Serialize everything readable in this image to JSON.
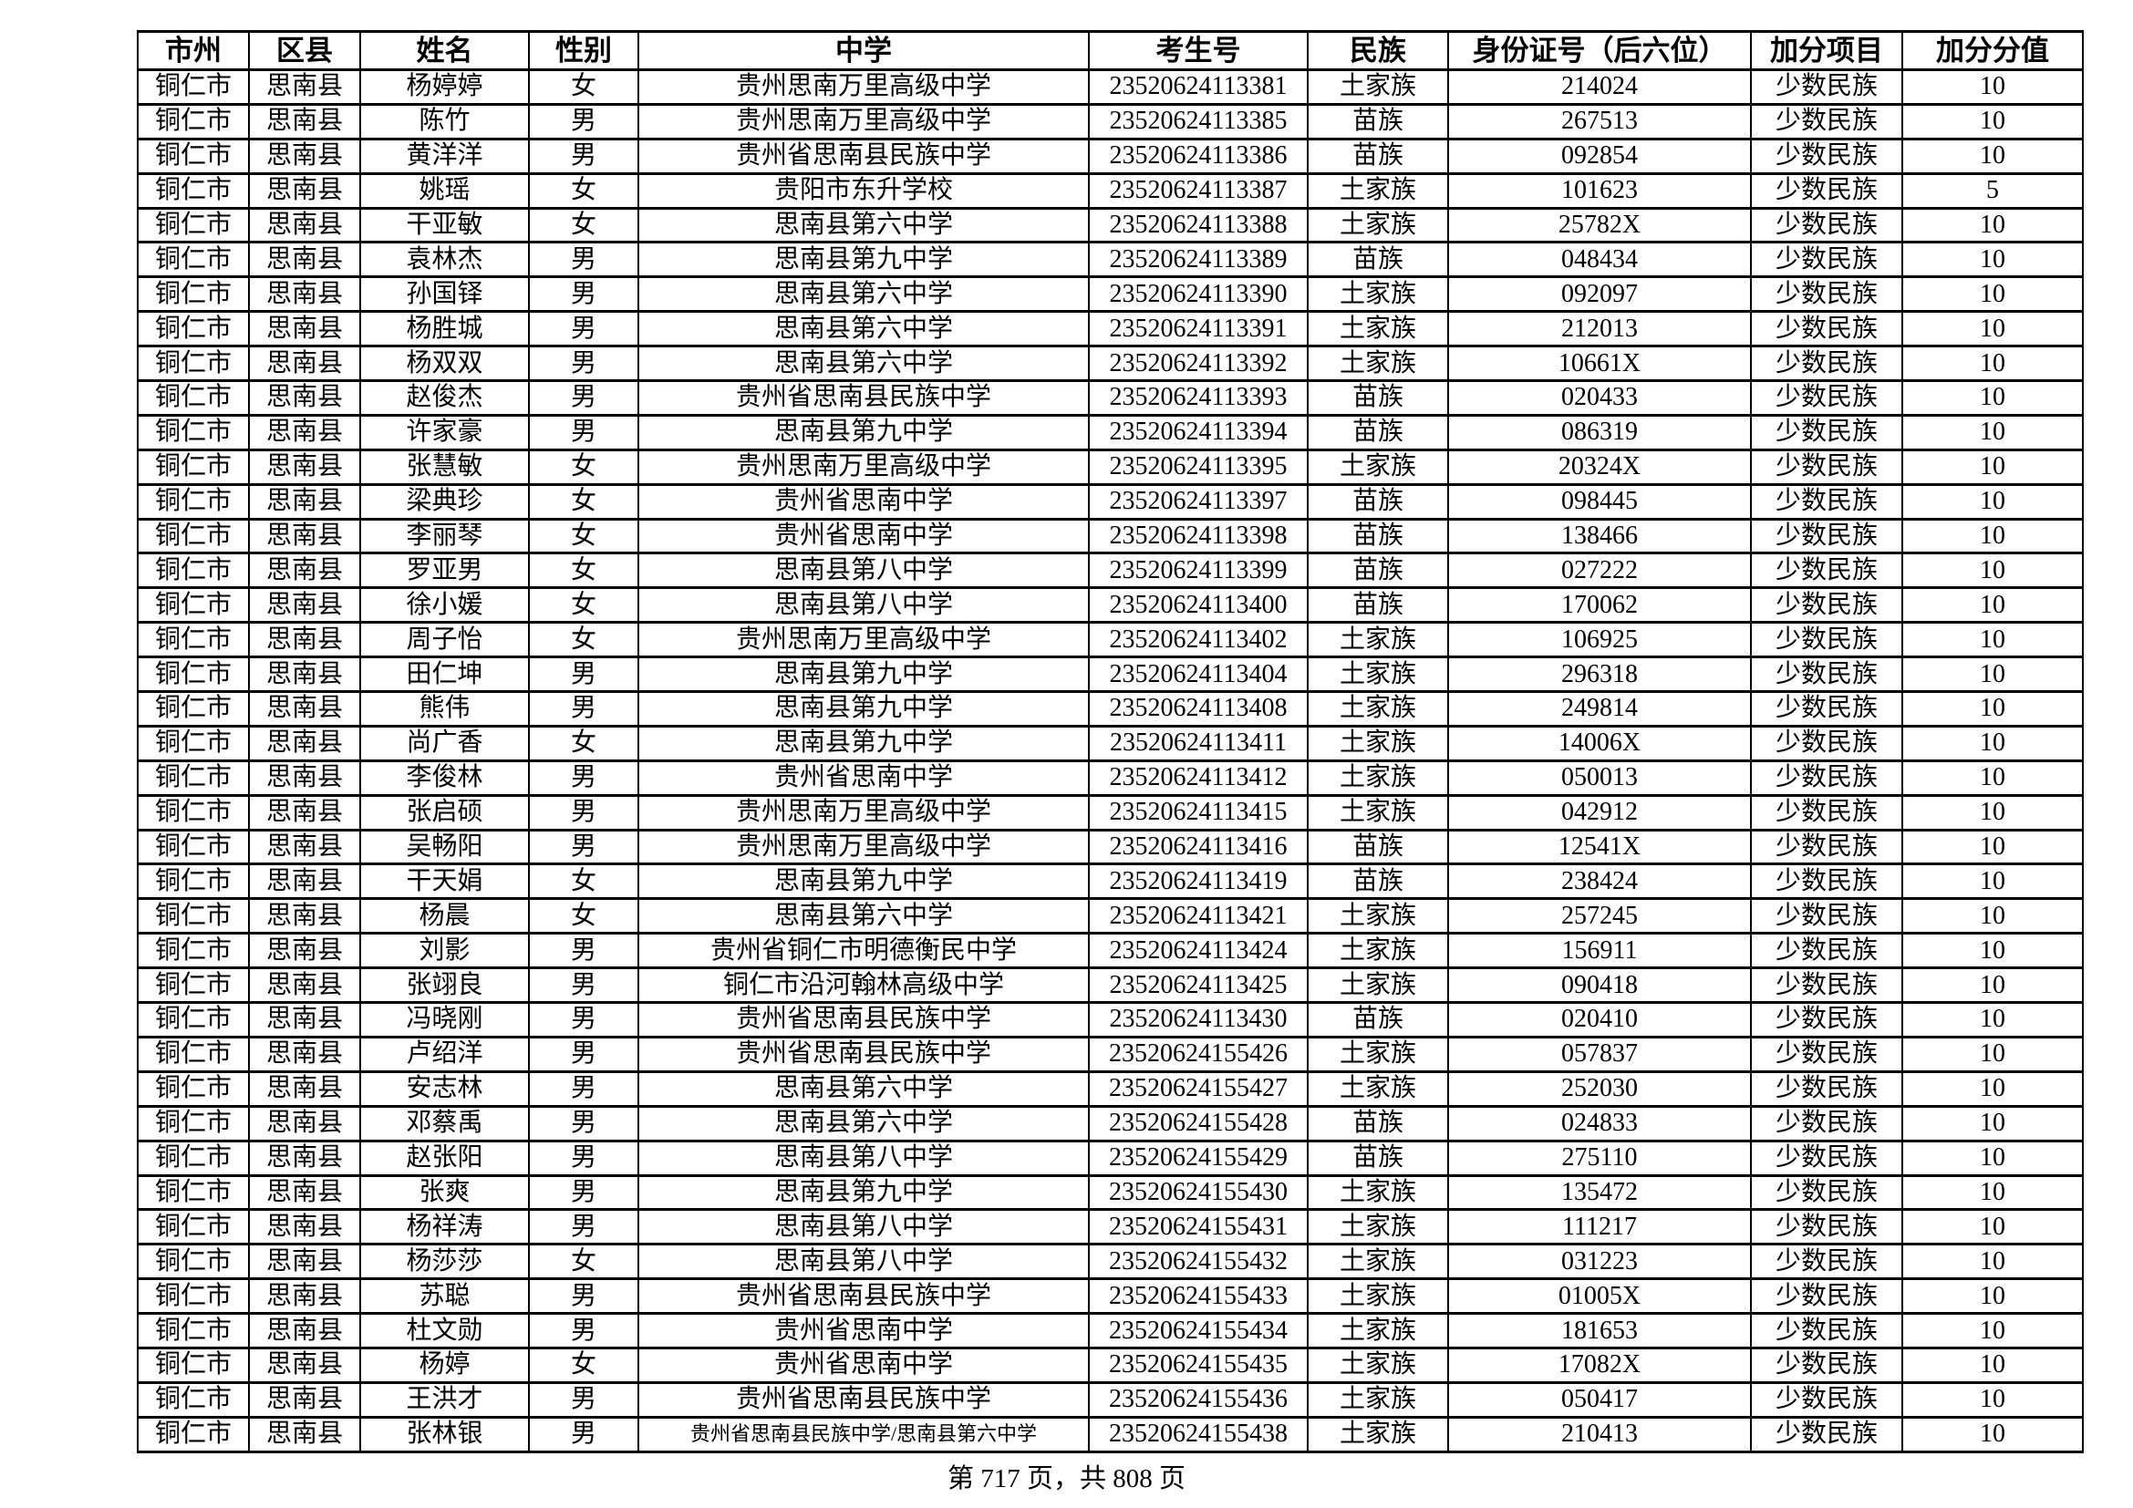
{
  "table": {
    "headers": [
      "市州",
      "区县",
      "姓名",
      "性别",
      "中学",
      "考生号",
      "民族",
      "身份证号（后六位）",
      "加分项目",
      "加分分值"
    ],
    "rows": [
      [
        "铜仁市",
        "思南县",
        "杨婷婷",
        "女",
        "贵州思南万里高级中学",
        "23520624113381",
        "土家族",
        "214024",
        "少数民族",
        "10"
      ],
      [
        "铜仁市",
        "思南县",
        "陈竹",
        "男",
        "贵州思南万里高级中学",
        "23520624113385",
        "苗族",
        "267513",
        "少数民族",
        "10"
      ],
      [
        "铜仁市",
        "思南县",
        "黄洋洋",
        "男",
        "贵州省思南县民族中学",
        "23520624113386",
        "苗族",
        "092854",
        "少数民族",
        "10"
      ],
      [
        "铜仁市",
        "思南县",
        "姚瑶",
        "女",
        "贵阳市东升学校",
        "23520624113387",
        "土家族",
        "101623",
        "少数民族",
        "5"
      ],
      [
        "铜仁市",
        "思南县",
        "干亚敏",
        "女",
        "思南县第六中学",
        "23520624113388",
        "土家族",
        "25782X",
        "少数民族",
        "10"
      ],
      [
        "铜仁市",
        "思南县",
        "袁林杰",
        "男",
        "思南县第九中学",
        "23520624113389",
        "苗族",
        "048434",
        "少数民族",
        "10"
      ],
      [
        "铜仁市",
        "思南县",
        "孙国铎",
        "男",
        "思南县第六中学",
        "23520624113390",
        "土家族",
        "092097",
        "少数民族",
        "10"
      ],
      [
        "铜仁市",
        "思南县",
        "杨胜城",
        "男",
        "思南县第六中学",
        "23520624113391",
        "土家族",
        "212013",
        "少数民族",
        "10"
      ],
      [
        "铜仁市",
        "思南县",
        "杨双双",
        "男",
        "思南县第六中学",
        "23520624113392",
        "土家族",
        "10661X",
        "少数民族",
        "10"
      ],
      [
        "铜仁市",
        "思南县",
        "赵俊杰",
        "男",
        "贵州省思南县民族中学",
        "23520624113393",
        "苗族",
        "020433",
        "少数民族",
        "10"
      ],
      [
        "铜仁市",
        "思南县",
        "许家豪",
        "男",
        "思南县第九中学",
        "23520624113394",
        "苗族",
        "086319",
        "少数民族",
        "10"
      ],
      [
        "铜仁市",
        "思南县",
        "张慧敏",
        "女",
        "贵州思南万里高级中学",
        "23520624113395",
        "土家族",
        "20324X",
        "少数民族",
        "10"
      ],
      [
        "铜仁市",
        "思南县",
        "梁典珍",
        "女",
        "贵州省思南中学",
        "23520624113397",
        "苗族",
        "098445",
        "少数民族",
        "10"
      ],
      [
        "铜仁市",
        "思南县",
        "李丽琴",
        "女",
        "贵州省思南中学",
        "23520624113398",
        "苗族",
        "138466",
        "少数民族",
        "10"
      ],
      [
        "铜仁市",
        "思南县",
        "罗亚男",
        "女",
        "思南县第八中学",
        "23520624113399",
        "苗族",
        "027222",
        "少数民族",
        "10"
      ],
      [
        "铜仁市",
        "思南县",
        "徐小媛",
        "女",
        "思南县第八中学",
        "23520624113400",
        "苗族",
        "170062",
        "少数民族",
        "10"
      ],
      [
        "铜仁市",
        "思南县",
        "周子怡",
        "女",
        "贵州思南万里高级中学",
        "23520624113402",
        "土家族",
        "106925",
        "少数民族",
        "10"
      ],
      [
        "铜仁市",
        "思南县",
        "田仁坤",
        "男",
        "思南县第九中学",
        "23520624113404",
        "土家族",
        "296318",
        "少数民族",
        "10"
      ],
      [
        "铜仁市",
        "思南县",
        "熊伟",
        "男",
        "思南县第九中学",
        "23520624113408",
        "土家族",
        "249814",
        "少数民族",
        "10"
      ],
      [
        "铜仁市",
        "思南县",
        "尚广香",
        "女",
        "思南县第九中学",
        "23520624113411",
        "土家族",
        "14006X",
        "少数民族",
        "10"
      ],
      [
        "铜仁市",
        "思南县",
        "李俊林",
        "男",
        "贵州省思南中学",
        "23520624113412",
        "土家族",
        "050013",
        "少数民族",
        "10"
      ],
      [
        "铜仁市",
        "思南县",
        "张启硕",
        "男",
        "贵州思南万里高级中学",
        "23520624113415",
        "土家族",
        "042912",
        "少数民族",
        "10"
      ],
      [
        "铜仁市",
        "思南县",
        "吴畅阳",
        "男",
        "贵州思南万里高级中学",
        "23520624113416",
        "苗族",
        "12541X",
        "少数民族",
        "10"
      ],
      [
        "铜仁市",
        "思南县",
        "干天娟",
        "女",
        "思南县第九中学",
        "23520624113419",
        "苗族",
        "238424",
        "少数民族",
        "10"
      ],
      [
        "铜仁市",
        "思南县",
        "杨晨",
        "女",
        "思南县第六中学",
        "23520624113421",
        "土家族",
        "257245",
        "少数民族",
        "10"
      ],
      [
        "铜仁市",
        "思南县",
        "刘影",
        "男",
        "贵州省铜仁市明德衡民中学",
        "23520624113424",
        "土家族",
        "156911",
        "少数民族",
        "10"
      ],
      [
        "铜仁市",
        "思南县",
        "张翊良",
        "男",
        "铜仁市沿河翰林高级中学",
        "23520624113425",
        "土家族",
        "090418",
        "少数民族",
        "10"
      ],
      [
        "铜仁市",
        "思南县",
        "冯晓刚",
        "男",
        "贵州省思南县民族中学",
        "23520624113430",
        "苗族",
        "020410",
        "少数民族",
        "10"
      ],
      [
        "铜仁市",
        "思南县",
        "卢绍洋",
        "男",
        "贵州省思南县民族中学",
        "23520624155426",
        "土家族",
        "057837",
        "少数民族",
        "10"
      ],
      [
        "铜仁市",
        "思南县",
        "安志林",
        "男",
        "思南县第六中学",
        "23520624155427",
        "土家族",
        "252030",
        "少数民族",
        "10"
      ],
      [
        "铜仁市",
        "思南县",
        "邓蔡禹",
        "男",
        "思南县第六中学",
        "23520624155428",
        "苗族",
        "024833",
        "少数民族",
        "10"
      ],
      [
        "铜仁市",
        "思南县",
        "赵张阳",
        "男",
        "思南县第八中学",
        "23520624155429",
        "苗族",
        "275110",
        "少数民族",
        "10"
      ],
      [
        "铜仁市",
        "思南县",
        "张爽",
        "男",
        "思南县第九中学",
        "23520624155430",
        "土家族",
        "135472",
        "少数民族",
        "10"
      ],
      [
        "铜仁市",
        "思南县",
        "杨祥涛",
        "男",
        "思南县第八中学",
        "23520624155431",
        "土家族",
        "111217",
        "少数民族",
        "10"
      ],
      [
        "铜仁市",
        "思南县",
        "杨莎莎",
        "女",
        "思南县第八中学",
        "23520624155432",
        "土家族",
        "031223",
        "少数民族",
        "10"
      ],
      [
        "铜仁市",
        "思南县",
        "苏聪",
        "男",
        "贵州省思南县民族中学",
        "23520624155433",
        "土家族",
        "01005X",
        "少数民族",
        "10"
      ],
      [
        "铜仁市",
        "思南县",
        "杜文勋",
        "男",
        "贵州省思南中学",
        "23520624155434",
        "土家族",
        "181653",
        "少数民族",
        "10"
      ],
      [
        "铜仁市",
        "思南县",
        "杨婷",
        "女",
        "贵州省思南中学",
        "23520624155435",
        "土家族",
        "17082X",
        "少数民族",
        "10"
      ],
      [
        "铜仁市",
        "思南县",
        "王洪才",
        "男",
        "贵州省思南县民族中学",
        "23520624155436",
        "土家族",
        "050417",
        "少数民族",
        "10"
      ],
      [
        "铜仁市",
        "思南县",
        "张林银",
        "男",
        "贵州省思南县民族中学/思南县第六中学",
        "23520624155438",
        "土家族",
        "210413",
        "少数民族",
        "10"
      ]
    ]
  },
  "footer": {
    "page_label": "第 717 页，共 808 页"
  }
}
